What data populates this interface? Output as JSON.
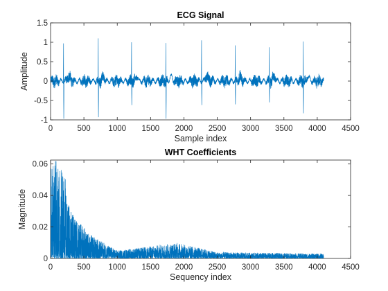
{
  "chart_data": [
    {
      "type": "line",
      "title": "ECG Signal",
      "xlabel": "Sample index",
      "ylabel": "Amplitude",
      "xlim": [
        0,
        4500
      ],
      "ylim": [
        -1,
        1.5
      ],
      "xticks": [
        0,
        500,
        1000,
        1500,
        2000,
        2500,
        3000,
        3500,
        4000,
        4500
      ],
      "yticks": [
        -1,
        -0.5,
        0,
        0.5,
        1,
        1.5
      ],
      "xtick_labels": [
        "0",
        "500",
        "1000",
        "1500",
        "2000",
        "2500",
        "3000",
        "3500",
        "4000",
        "4500"
      ],
      "ytick_labels": [
        "-1",
        "-0.5",
        "0",
        "0.5",
        "1",
        "1.5"
      ],
      "grid": false,
      "color": "#0072BD",
      "series": [
        {
          "x_range": [
            1,
            4096
          ],
          "baseline_noise_amplitude": 0.15,
          "beats": [
            {
              "x": 195,
              "peak": 0.97,
              "trough": -0.97
            },
            {
              "x": 715,
              "peak": 1.1,
              "trough": -0.93
            },
            {
              "x": 1215,
              "peak": 1.0,
              "trough": -0.62
            },
            {
              "x": 1730,
              "peak": 0.98,
              "trough": -0.97
            },
            {
              "x": 2265,
              "peak": 1.05,
              "trough": -0.62
            },
            {
              "x": 2770,
              "peak": 0.92,
              "trough": -0.6
            },
            {
              "x": 3280,
              "peak": 0.87,
              "trough": -0.55
            },
            {
              "x": 3790,
              "peak": 1.02,
              "trough": -0.83
            }
          ]
        }
      ]
    },
    {
      "type": "line",
      "title": "WHT Coefficients",
      "xlabel": "Sequency index",
      "ylabel": "Magnitude",
      "xlim": [
        0,
        4500
      ],
      "ylim": [
        0,
        0.0625
      ],
      "xticks": [
        0,
        500,
        1000,
        1500,
        2000,
        2500,
        3000,
        3500,
        4000,
        4500
      ],
      "yticks": [
        0,
        0.02,
        0.04,
        0.06
      ],
      "xtick_labels": [
        "0",
        "500",
        "1000",
        "1500",
        "2000",
        "2500",
        "3000",
        "3500",
        "4000",
        "4500"
      ],
      "ytick_labels": [
        "0",
        "0.02",
        "0.04",
        "0.06"
      ],
      "grid": false,
      "color": "#0072BD",
      "series": [
        {
          "x_range": [
            1,
            4096
          ],
          "envelope": [
            {
              "x": 0,
              "y": 0.0625
            },
            {
              "x": 100,
              "y": 0.062
            },
            {
              "x": 200,
              "y": 0.056
            },
            {
              "x": 300,
              "y": 0.03
            },
            {
              "x": 400,
              "y": 0.025
            },
            {
              "x": 600,
              "y": 0.015
            },
            {
              "x": 1000,
              "y": 0.005
            },
            {
              "x": 1900,
              "y": 0.01
            },
            {
              "x": 2500,
              "y": 0.004
            },
            {
              "x": 4096,
              "y": 0.003
            }
          ]
        }
      ]
    }
  ]
}
